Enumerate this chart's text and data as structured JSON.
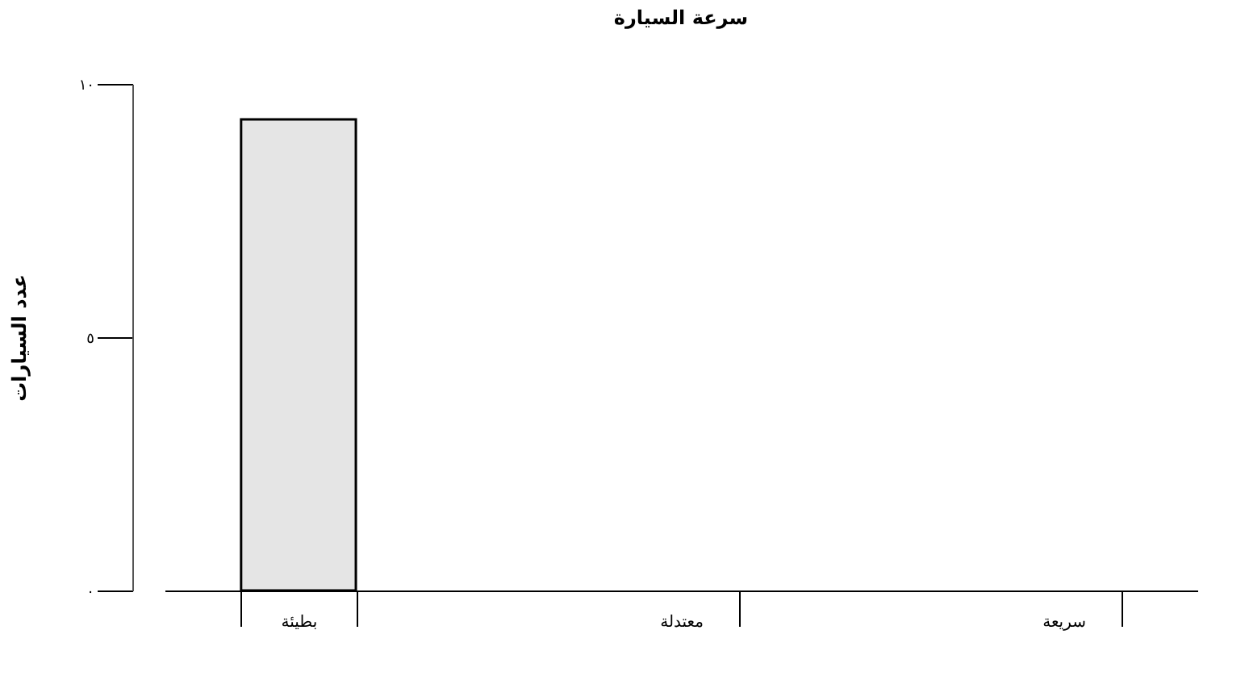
{
  "chart_data": {
    "type": "bar",
    "title": "سرعة السيارة",
    "ylabel": "عدد السيارات",
    "categories": [
      "بطيئة",
      "معتدلة",
      "سريعة"
    ],
    "values": [
      9.3,
      0,
      0
    ],
    "color": "#e5e5e5",
    "ylim": [
      0,
      10
    ],
    "yticks": [
      {
        "value": 0,
        "label": "٠"
      },
      {
        "value": 5,
        "label": "٥"
      },
      {
        "value": 10,
        "label": "١٠"
      }
    ],
    "grid": false
  }
}
